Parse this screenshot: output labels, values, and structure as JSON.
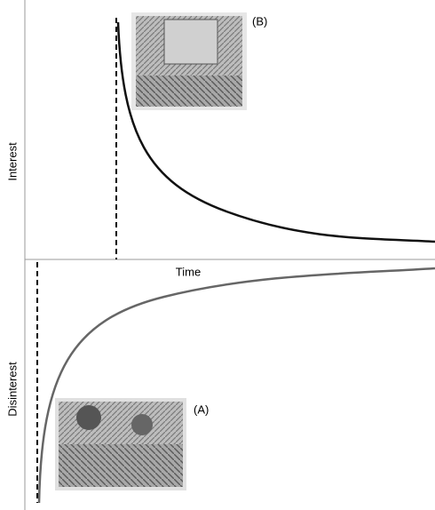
{
  "axes": {
    "upper_label": "Interest",
    "lower_label": "Disinterest",
    "x_label": "Time"
  },
  "images": [
    {
      "label": "(B)"
    },
    {
      "label": "(A)"
    }
  ]
}
